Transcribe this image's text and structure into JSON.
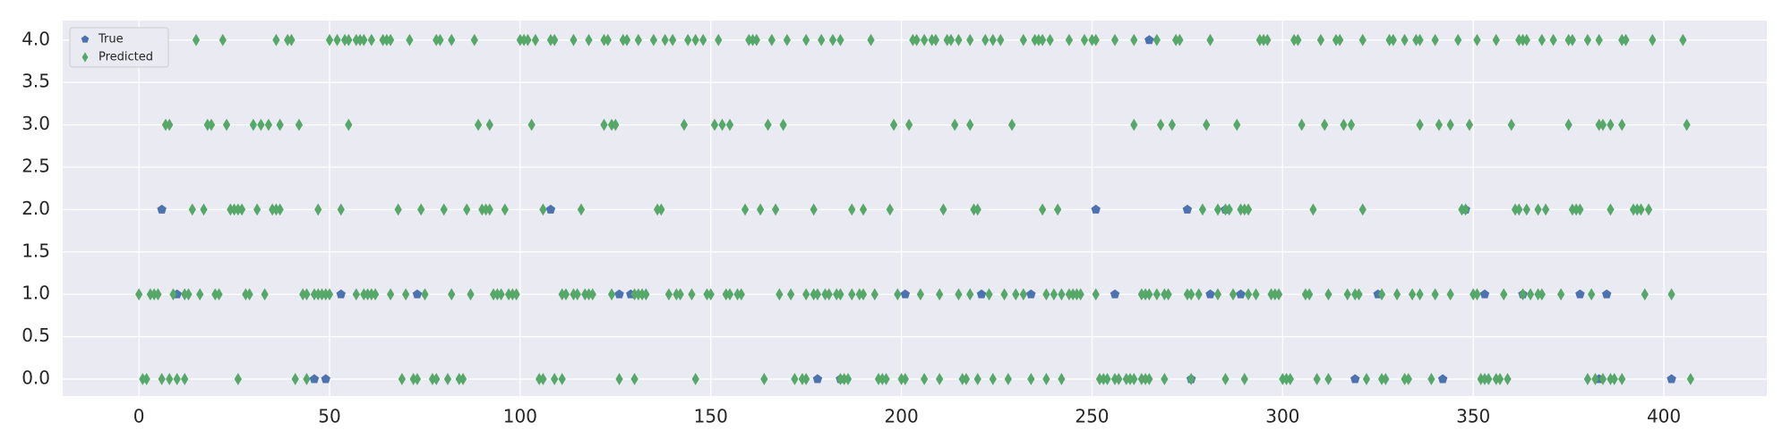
{
  "chart_data": {
    "type": "scatter",
    "xlim": [
      -20,
      427
    ],
    "ylim": [
      -0.2,
      4.23
    ],
    "xticks": [
      0,
      50,
      100,
      150,
      200,
      250,
      300,
      350,
      400
    ],
    "yticks": [
      {
        "value": 0,
        "label": "0.0"
      },
      {
        "value": 0.5,
        "label": "0.5"
      },
      {
        "value": 1,
        "label": "1.0"
      },
      {
        "value": 1.5,
        "label": "1.5"
      },
      {
        "value": 2,
        "label": "2.0"
      },
      {
        "value": 2.5,
        "label": "2.5"
      },
      {
        "value": 3,
        "label": "3.0"
      },
      {
        "value": 3.5,
        "label": "3.5"
      },
      {
        "value": 4,
        "label": "4.0"
      }
    ],
    "grid": true,
    "legend": "upper left",
    "series": [
      {
        "name": "True",
        "color": "#4c72b0",
        "marker": "pentagon",
        "x": [
          6,
          10,
          46,
          49,
          53,
          73,
          108,
          126,
          129,
          178,
          184,
          201,
          221,
          234,
          251,
          256,
          265,
          275,
          276,
          281,
          285,
          289,
          319,
          325,
          342,
          348,
          353,
          363,
          378,
          383,
          385,
          402
        ],
        "values": [
          2,
          1,
          0,
          0,
          1,
          1,
          2,
          1,
          1,
          0,
          0,
          1,
          1,
          1,
          2,
          1,
          4,
          2,
          0,
          1,
          2,
          1,
          0,
          1,
          0,
          2,
          1,
          1,
          1,
          0,
          1,
          0
        ]
      },
      {
        "name": "Predicted",
        "color": "#55a868",
        "marker": "diamond",
        "x": [
          15,
          22,
          36,
          39,
          40,
          50,
          52,
          54,
          55,
          57,
          58,
          59,
          61,
          64,
          65,
          66,
          71,
          78,
          79,
          82,
          88,
          100,
          101,
          102,
          104,
          108,
          109,
          114,
          118,
          122,
          123,
          127,
          128,
          131,
          135,
          138,
          140,
          144,
          146,
          148,
          152,
          160,
          161,
          162,
          166,
          170,
          175,
          179,
          182,
          184,
          192,
          203,
          204,
          206,
          208,
          209,
          212,
          213,
          215,
          218,
          222,
          224,
          226,
          232,
          235,
          236,
          237,
          239,
          244,
          248,
          250,
          251,
          256,
          261,
          267,
          272,
          273,
          281,
          294,
          295,
          296,
          303,
          304,
          310,
          314,
          315,
          321,
          328,
          329,
          332,
          335,
          336,
          340,
          346,
          351,
          356,
          362,
          363,
          364,
          368,
          371,
          375,
          376,
          380,
          383,
          389,
          390,
          397,
          405,
          7,
          8,
          18,
          19,
          23,
          30,
          32,
          34,
          37,
          42,
          55,
          89,
          92,
          103,
          122,
          124,
          125,
          143,
          151,
          153,
          155,
          165,
          169,
          198,
          202,
          214,
          218,
          229,
          261,
          268,
          271,
          280,
          288,
          305,
          311,
          316,
          318,
          336,
          341,
          344,
          349,
          360,
          375,
          383,
          384,
          386,
          389,
          406,
          14,
          17,
          24,
          25,
          26,
          27,
          31,
          35,
          36,
          37,
          47,
          53,
          68,
          74,
          80,
          86,
          90,
          91,
          92,
          96,
          106,
          116,
          136,
          137,
          159,
          163,
          167,
          177,
          187,
          190,
          197,
          211,
          219,
          220,
          237,
          241,
          279,
          283,
          285,
          286,
          289,
          290,
          291,
          308,
          321,
          347,
          348,
          361,
          362,
          364,
          367,
          369,
          376,
          377,
          378,
          386,
          392,
          393,
          394,
          396,
          0,
          3,
          4,
          5,
          9,
          12,
          13,
          16,
          20,
          21,
          28,
          29,
          33,
          43,
          44,
          46,
          47,
          48,
          49,
          50,
          57,
          59,
          60,
          61,
          62,
          66,
          70,
          75,
          82,
          87,
          93,
          94,
          95,
          97,
          98,
          99,
          111,
          112,
          114,
          115,
          117,
          118,
          119,
          124,
          130,
          131,
          132,
          133,
          139,
          141,
          142,
          145,
          149,
          150,
          154,
          155,
          157,
          158,
          168,
          171,
          175,
          177,
          178,
          180,
          181,
          183,
          184,
          187,
          189,
          190,
          193,
          199,
          205,
          210,
          215,
          218,
          223,
          227,
          230,
          232,
          238,
          240,
          242,
          244,
          245,
          246,
          247,
          251,
          263,
          264,
          265,
          267,
          269,
          270,
          275,
          276,
          278,
          283,
          287,
          291,
          293,
          297,
          298,
          299,
          306,
          307,
          312,
          317,
          319,
          320,
          326,
          330,
          334,
          336,
          340,
          344,
          350,
          351,
          358,
          363,
          365,
          367,
          368,
          373,
          381,
          395,
          402,
          1,
          2,
          6,
          8,
          10,
          12,
          26,
          41,
          44,
          69,
          72,
          73,
          77,
          78,
          81,
          84,
          85,
          105,
          106,
          109,
          111,
          126,
          130,
          146,
          164,
          172,
          174,
          175,
          184,
          185,
          186,
          194,
          195,
          196,
          200,
          201,
          206,
          210,
          216,
          217,
          220,
          224,
          228,
          234,
          238,
          242,
          252,
          253,
          254,
          256,
          257,
          259,
          260,
          261,
          263,
          264,
          265,
          269,
          276,
          285,
          290,
          300,
          301,
          302,
          309,
          312,
          322,
          326,
          327,
          332,
          333,
          339,
          352,
          353,
          354,
          356,
          357,
          359,
          380,
          382,
          384,
          386,
          387,
          389,
          407
        ],
        "values": [
          4,
          4,
          4,
          4,
          4,
          4,
          4,
          4,
          4,
          4,
          4,
          4,
          4,
          4,
          4,
          4,
          4,
          4,
          4,
          4,
          4,
          4,
          4,
          4,
          4,
          4,
          4,
          4,
          4,
          4,
          4,
          4,
          4,
          4,
          4,
          4,
          4,
          4,
          4,
          4,
          4,
          4,
          4,
          4,
          4,
          4,
          4,
          4,
          4,
          4,
          4,
          4,
          4,
          4,
          4,
          4,
          4,
          4,
          4,
          4,
          4,
          4,
          4,
          4,
          4,
          4,
          4,
          4,
          4,
          4,
          4,
          4,
          4,
          4,
          4,
          4,
          4,
          4,
          4,
          4,
          4,
          4,
          4,
          4,
          4,
          4,
          4,
          4,
          4,
          4,
          4,
          4,
          4,
          4,
          4,
          4,
          4,
          4,
          4,
          4,
          4,
          4,
          4,
          4,
          4,
          4,
          4,
          4,
          4,
          3,
          3,
          3,
          3,
          3,
          3,
          3,
          3,
          3,
          3,
          3,
          3,
          3,
          3,
          3,
          3,
          3,
          3,
          3,
          3,
          3,
          3,
          3,
          3,
          3,
          3,
          3,
          3,
          3,
          3,
          3,
          3,
          3,
          3,
          3,
          3,
          3,
          3,
          3,
          3,
          3,
          3,
          3,
          3,
          3,
          3,
          3,
          3,
          2,
          2,
          2,
          2,
          2,
          2,
          2,
          2,
          2,
          2,
          2,
          2,
          2,
          2,
          2,
          2,
          2,
          2,
          2,
          2,
          2,
          2,
          2,
          2,
          2,
          2,
          2,
          2,
          2,
          2,
          2,
          2,
          2,
          2,
          2,
          2,
          2,
          2,
          2,
          2,
          2,
          2,
          2,
          2,
          2,
          2,
          2,
          2,
          2,
          2,
          2,
          2,
          2,
          2,
          2,
          2,
          2,
          2,
          2,
          2,
          1,
          1,
          1,
          1,
          1,
          1,
          1,
          1,
          1,
          1,
          1,
          1,
          1,
          1,
          1,
          1,
          1,
          1,
          1,
          1,
          1,
          1,
          1,
          1,
          1,
          1,
          1,
          1,
          1,
          1,
          1,
          1,
          1,
          1,
          1,
          1,
          1,
          1,
          1,
          1,
          1,
          1,
          1,
          1,
          1,
          1,
          1,
          1,
          1,
          1,
          1,
          1,
          1,
          1,
          1,
          1,
          1,
          1,
          1,
          1,
          1,
          1,
          1,
          1,
          1,
          1,
          1,
          1,
          1,
          1,
          1,
          1,
          1,
          1,
          1,
          1,
          1,
          1,
          1,
          1,
          1,
          1,
          1,
          1,
          1,
          1,
          1,
          1,
          1,
          1,
          1,
          1,
          1,
          1,
          1,
          1,
          1,
          1,
          1,
          1,
          1,
          1,
          1,
          1,
          1,
          1,
          1,
          1,
          1,
          1,
          1,
          1,
          1,
          1,
          1,
          1,
          1,
          1,
          1,
          1,
          1,
          1,
          1,
          1,
          1,
          1,
          1,
          0,
          0,
          0,
          0,
          0,
          0,
          0,
          0,
          0,
          0,
          0,
          0,
          0,
          0,
          0,
          0,
          0,
          0,
          0,
          0,
          0,
          0,
          0,
          0,
          0,
          0,
          0,
          0,
          0,
          0,
          0,
          0,
          0,
          0,
          0,
          0,
          0,
          0,
          0,
          0,
          0,
          0,
          0,
          0,
          0,
          0,
          0,
          0,
          0,
          0,
          0,
          0,
          0,
          0,
          0,
          0,
          0,
          0,
          0,
          0,
          0,
          0,
          0,
          0,
          0,
          0,
          0,
          0,
          0,
          0,
          0,
          0,
          0,
          0,
          0,
          0,
          0,
          0,
          0,
          0,
          0,
          0,
          0,
          0,
          0
        ]
      }
    ]
  }
}
